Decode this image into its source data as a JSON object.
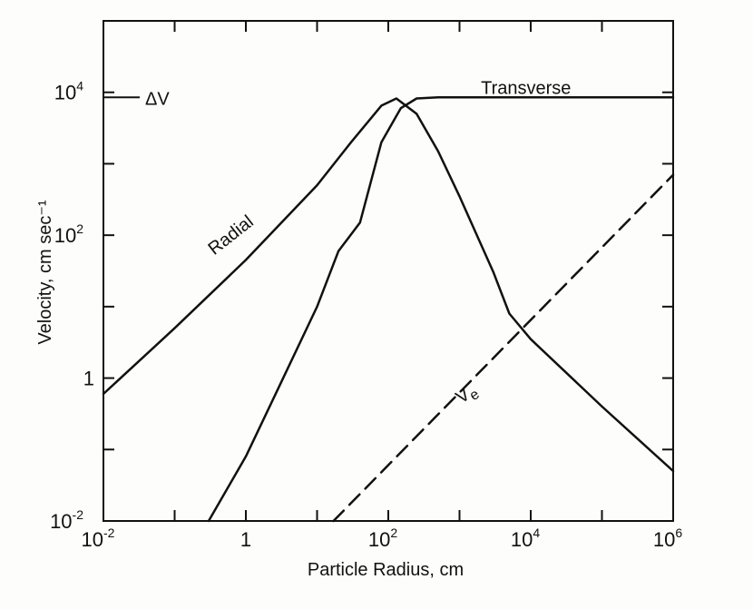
{
  "chart_data": {
    "type": "line",
    "title": "",
    "xlabel": "Particle Radius, cm",
    "ylabel": "Velocity, cm sec⁻¹",
    "x_scale": "log",
    "y_scale": "log",
    "xlim": [
      0.01,
      1000000
    ],
    "ylim": [
      0.01,
      100000
    ],
    "grid": false,
    "x_ticks": [
      {
        "value": 0.01,
        "base": "10",
        "exp": "-2"
      },
      {
        "value": 1,
        "base": "1",
        "exp": ""
      },
      {
        "value": 100,
        "base": "10",
        "exp": "2"
      },
      {
        "value": 10000,
        "base": "10",
        "exp": "4"
      },
      {
        "value": 1000000,
        "base": "10",
        "exp": "6"
      }
    ],
    "y_ticks": [
      {
        "value": 0.01,
        "base": "10",
        "exp": "-2"
      },
      {
        "value": 1,
        "base": "1",
        "exp": ""
      },
      {
        "value": 100,
        "base": "10",
        "exp": "2"
      },
      {
        "value": 10000,
        "base": "10",
        "exp": "4"
      }
    ],
    "series": [
      {
        "name": "Radial",
        "style": "solid",
        "color": "#111111",
        "x": [
          0.01,
          0.1,
          1,
          10,
          30,
          80,
          130,
          250,
          500,
          1000,
          3000,
          5000,
          10000,
          100000,
          1000000
        ],
        "y": [
          0.6,
          5,
          45,
          500,
          2000,
          6500,
          8200,
          5000,
          1500,
          350,
          30,
          8,
          3.5,
          0.4,
          0.05
        ]
      },
      {
        "name": "Transverse",
        "style": "solid",
        "color": "#111111",
        "x": [
          0.3,
          1,
          3,
          10,
          20,
          40,
          80,
          150,
          250,
          500,
          1000,
          10000,
          1000000
        ],
        "y": [
          0.01,
          0.08,
          0.8,
          10,
          60,
          150,
          2000,
          6000,
          8200,
          8500,
          8500,
          8500,
          8500
        ]
      },
      {
        "name": "Ve",
        "style": "dashed",
        "color": "#111111",
        "x": [
          17,
          1000000
        ],
        "y": [
          0.01,
          700
        ]
      }
    ],
    "annotations": [
      {
        "text": "ΔV",
        "x": 0.01,
        "y": 8500
      },
      {
        "text": "Transverse",
        "x": 2000,
        "y": 9500
      },
      {
        "text": "Radial",
        "x": 1,
        "y": 60
      },
      {
        "text": "V",
        "sub": "e",
        "x": 1500,
        "y": 0.5
      }
    ]
  }
}
